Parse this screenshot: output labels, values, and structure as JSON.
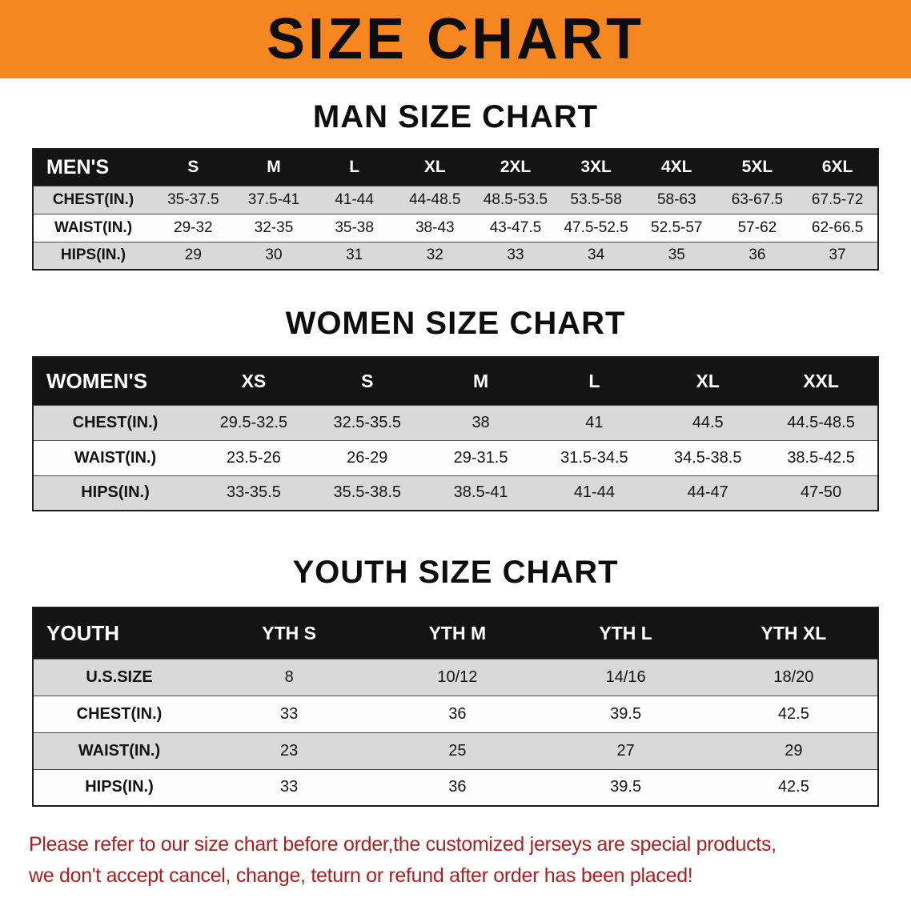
{
  "banner": {
    "title": "SIZE CHART"
  },
  "colors": {
    "banner_bg": "#F6861F",
    "table_header_bg": "#141414",
    "row_alt_bg": "#d9d9d9",
    "note_text": "#AD1F1F"
  },
  "sections": [
    {
      "id": "men",
      "heading": "MAN SIZE CHART",
      "table": {
        "header": [
          "MEN'S",
          "S",
          "M",
          "L",
          "XL",
          "2XL",
          "3XL",
          "4XL",
          "5XL",
          "6XL"
        ],
        "rows": [
          [
            "CHEST(IN.)",
            "35-37.5",
            "37.5-41",
            "41-44",
            "44-48.5",
            "48.5-53.5",
            "53.5-58",
            "58-63",
            "63-67.5",
            "67.5-72"
          ],
          [
            "WAIST(IN.)",
            "29-32",
            "32-35",
            "35-38",
            "38-43",
            "43-47.5",
            "47.5-52.5",
            "52.5-57",
            "57-62",
            "62-66.5"
          ],
          [
            "HIPS(IN.)",
            "29",
            "30",
            "31",
            "32",
            "33",
            "34",
            "35",
            "36",
            "37"
          ]
        ]
      }
    },
    {
      "id": "women",
      "heading": "WOMEN SIZE CHART",
      "table": {
        "header": [
          "WOMEN'S",
          "XS",
          "S",
          "M",
          "L",
          "XL",
          "XXL"
        ],
        "rows": [
          [
            "CHEST(IN.)",
            "29.5-32.5",
            "32.5-35.5",
            "38",
            "41",
            "44.5",
            "44.5-48.5"
          ],
          [
            "WAIST(IN.)",
            "23.5-26",
            "26-29",
            "29-31.5",
            "31.5-34.5",
            "34.5-38.5",
            "38.5-42.5"
          ],
          [
            "HIPS(IN.)",
            "33-35.5",
            "35.5-38.5",
            "38.5-41",
            "41-44",
            "44-47",
            "47-50"
          ]
        ]
      }
    },
    {
      "id": "youth",
      "heading": "YOUTH SIZE CHART",
      "table": {
        "header": [
          "YOUTH",
          "YTH S",
          "YTH M",
          "YTH L",
          "YTH XL"
        ],
        "rows": [
          [
            "U.S.SIZE",
            "8",
            "10/12",
            "14/16",
            "18/20"
          ],
          [
            "CHEST(IN.)",
            "33",
            "36",
            "39.5",
            "42.5"
          ],
          [
            "WAIST(IN.)",
            "23",
            "25",
            "27",
            "29"
          ],
          [
            "HIPS(IN.)",
            "33",
            "36",
            "39.5",
            "42.5"
          ]
        ]
      }
    }
  ],
  "footer": {
    "line1": "Please refer to our size chart before order,the customized jerseys are special products,",
    "line2": "we don't accept cancel, change, teturn or refund after order has been placed!"
  }
}
